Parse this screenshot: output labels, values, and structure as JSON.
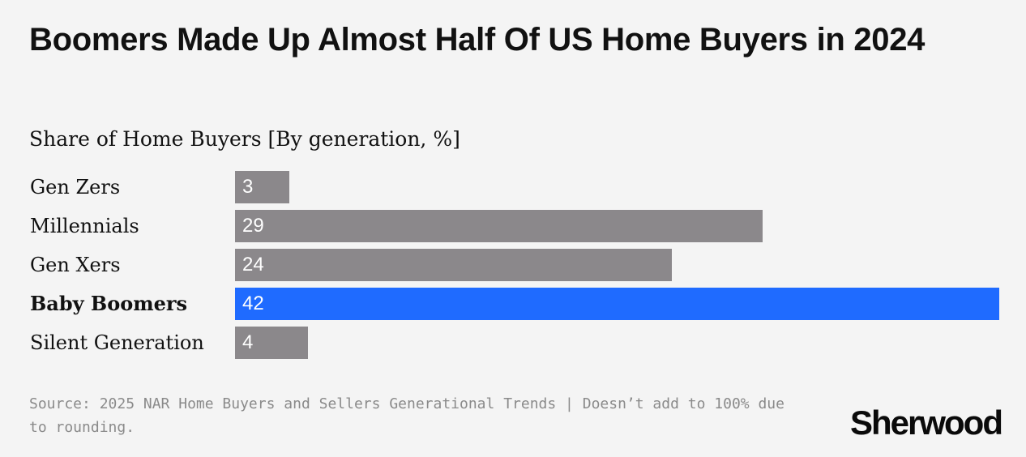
{
  "colors": {
    "bar_default": "#8b888b",
    "bar_highlight": "#1f6bff",
    "background": "#f4f4f4"
  },
  "chart_data": {
    "type": "bar",
    "orientation": "horizontal",
    "title": "Boomers Made Up Almost Half Of US Home Buyers in 2024",
    "subtitle": "Share of Home Buyers [By generation, %]",
    "categories": [
      "Gen Zers",
      "Millennials",
      "Gen Xers",
      "Baby Boomers",
      "Silent Generation"
    ],
    "values": [
      3,
      29,
      24,
      42,
      4
    ],
    "highlight": "Baby Boomers",
    "xlim": [
      0,
      42
    ],
    "grid": false,
    "legend": "none"
  },
  "footer": {
    "source": "Source: 2025 NAR Home Buyers and Sellers Generational Trends | Doesn’t add to 100% due to rounding.",
    "logo": "Sherwood"
  }
}
